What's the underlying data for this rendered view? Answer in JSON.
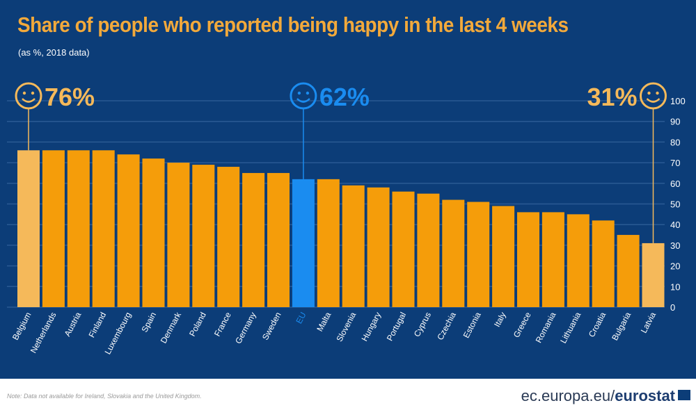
{
  "chart_data": {
    "type": "bar",
    "title": "Share of people who reported being happy in the last 4 weeks",
    "subtitle": "(as %, 2018 data)",
    "categories": [
      "Belgium",
      "Netherlands",
      "Austria",
      "Finland",
      "Luxembourg",
      "Spain",
      "Denmark",
      "Poland",
      "France",
      "Germany",
      "Sweden",
      "EU",
      "Malta",
      "Slovenia",
      "Hungary",
      "Portugal",
      "Cyprus",
      "Czechia",
      "Estonia",
      "Italy",
      "Greece",
      "Romania",
      "Lithuania",
      "Croatia",
      "Bulgaria",
      "Latvia"
    ],
    "values": [
      76,
      76,
      76,
      76,
      74,
      72,
      70,
      69,
      68,
      65,
      65,
      62,
      62,
      59,
      58,
      56,
      55,
      52,
      51,
      49,
      46,
      46,
      45,
      42,
      35,
      31
    ],
    "ylim": [
      0,
      100
    ],
    "yticks": [
      "0",
      "10",
      "20",
      "30",
      "40",
      "50",
      "60",
      "70",
      "80",
      "90",
      "100"
    ],
    "grid": true,
    "annotations": [
      {
        "category": "Belgium",
        "label": "76%"
      },
      {
        "category": "EU",
        "label": "62%"
      },
      {
        "category": "Latvia",
        "label": "31%"
      }
    ],
    "colors": {
      "default": "#f59d0a",
      "highlight": "#f5b95a",
      "eu": "#1a8cf0",
      "background": "#0c3d78",
      "grid": "#2a5a93"
    }
  },
  "footer": {
    "note": "Note: Data not available for Ireland, Slovakia and the United Kingdom.",
    "source_prefix": "ec.europa.eu/",
    "source_brand": "eurostat"
  }
}
